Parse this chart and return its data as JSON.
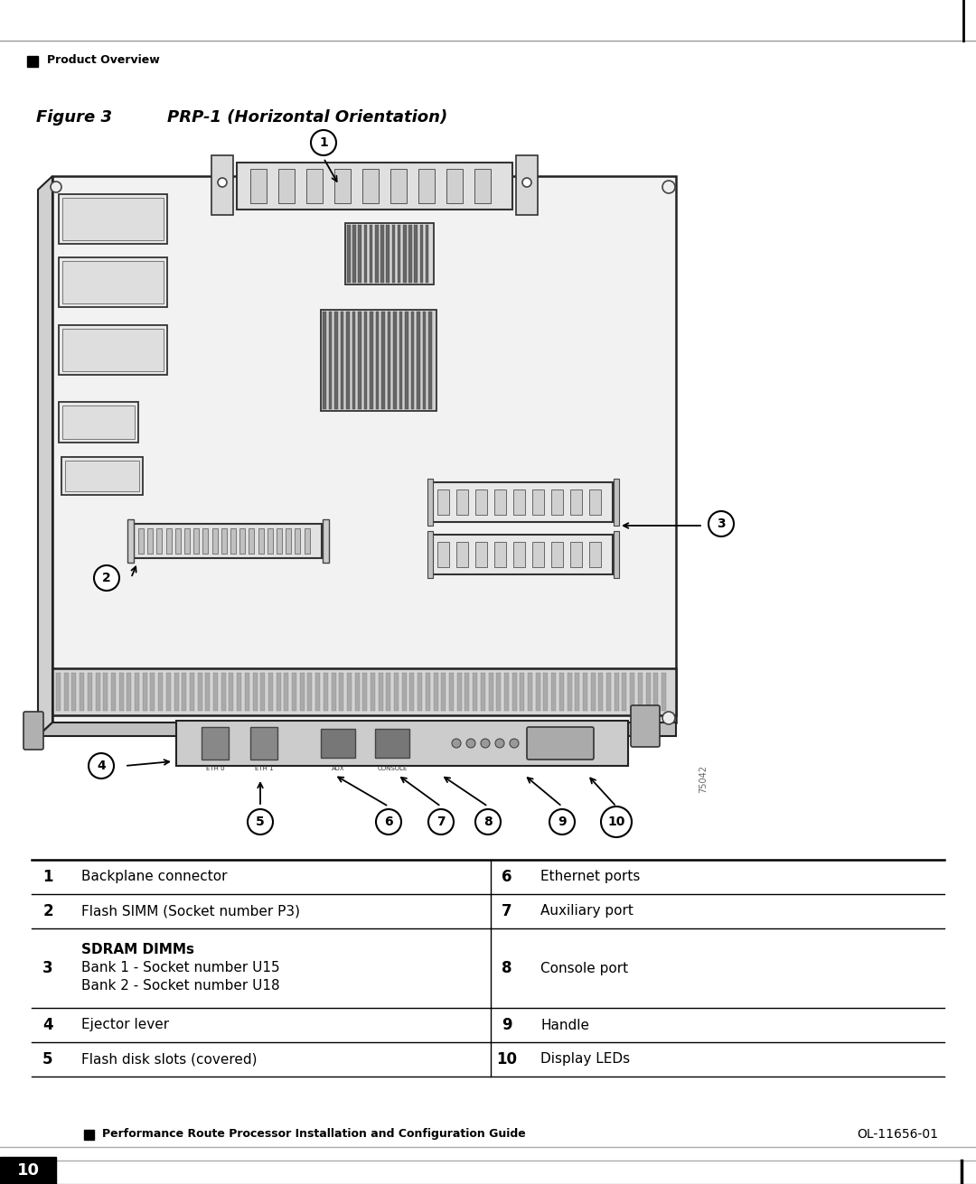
{
  "title_fig": "Figure 3",
  "title_sub": "PRP-1 (Horizontal Orientation)",
  "header_text": "Product Overview",
  "footer_doc": "Performance Route Processor Installation and Configuration Guide",
  "footer_code": "OL-11656-01",
  "footer_page": "10",
  "watermark": "75042",
  "table": {
    "rows": [
      {
        "num": "1",
        "left_label": "Backplane connector",
        "right_num": "6",
        "right_label": "Ethernet ports"
      },
      {
        "num": "2",
        "left_label": "Flash SIMM (Socket number P3)",
        "right_num": "7",
        "right_label": "Auxiliary port"
      },
      {
        "num": "3",
        "left_label": "SDRAM DIMMs\nBank 1 - Socket number U15\nBank 2 - Socket number U18",
        "right_num": "8",
        "right_label": "Console port"
      },
      {
        "num": "4",
        "left_label": "Ejector lever",
        "right_num": "9",
        "right_label": "Handle"
      },
      {
        "num": "5",
        "left_label": "Flash disk slots (covered)",
        "right_num": "10",
        "right_label": "Display LEDs"
      }
    ]
  },
  "bg_color": "#ffffff"
}
